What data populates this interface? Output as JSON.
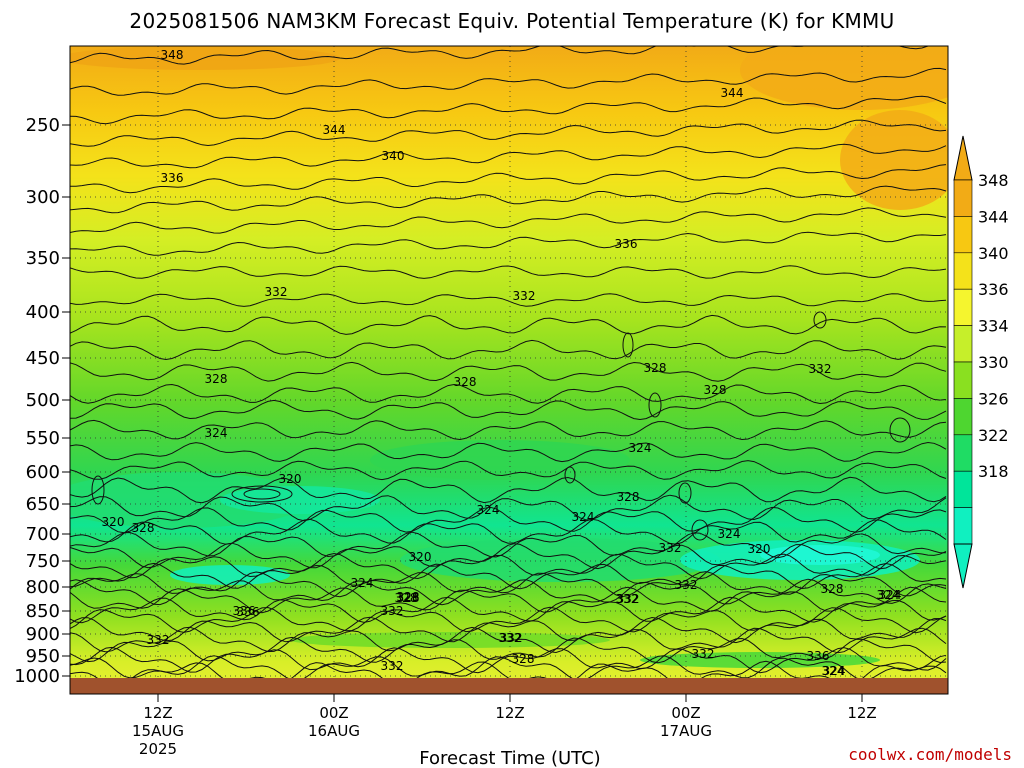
{
  "chart_data": {
    "type": "contour",
    "title": "2025081506 NAM3KM Forecast Equiv. Potential Temperature (K) for KMMU",
    "xlabel": "Forecast Time (UTC)",
    "ylabel": "",
    "credit": "coolwx.com/models",
    "y_axis": {
      "scale": "log-pressure",
      "reversed": true,
      "ticks": [
        "250",
        "300",
        "350",
        "400",
        "450",
        "500",
        "550",
        "600",
        "650",
        "700",
        "750",
        "800",
        "850",
        "900",
        "950",
        "1000"
      ]
    },
    "x_axis": {
      "ticks": [
        {
          "label": "12Z",
          "day": "15AUG",
          "year": "2025"
        },
        {
          "label": "00Z",
          "day": "16AUG",
          "year": ""
        },
        {
          "label": "12Z",
          "day": "",
          "year": ""
        },
        {
          "label": "00Z",
          "day": "17AUG",
          "year": ""
        },
        {
          "label": "12Z",
          "day": "",
          "year": ""
        }
      ]
    },
    "colorbar": {
      "unit": "K",
      "levels": [
        "348",
        "344",
        "340",
        "336",
        "334",
        "330",
        "326",
        "322",
        "318"
      ],
      "colors": [
        "#f2ab16",
        "#f7c812",
        "#f4e21a",
        "#f5f52e",
        "#c6ef2a",
        "#8ae020",
        "#4ed630",
        "#1fdc64",
        "#00e59a",
        "#10f0c0"
      ]
    },
    "contour_labels": [
      "348",
      "344",
      "344",
      "340",
      "336",
      "336",
      "332",
      "332",
      "336",
      "332",
      "328",
      "328",
      "328",
      "328",
      "324",
      "324",
      "332",
      "320",
      "320",
      "328",
      "324",
      "324",
      "324",
      "328",
      "320",
      "324",
      "320",
      "324",
      "328",
      "332",
      "332",
      "324",
      "328",
      "332",
      "332",
      "336",
      "332",
      "328",
      "332",
      "332",
      "336",
      "324",
      "324",
      "328",
      "332",
      "332",
      "328"
    ],
    "grid": true,
    "terrain_color": "#a0522d"
  }
}
